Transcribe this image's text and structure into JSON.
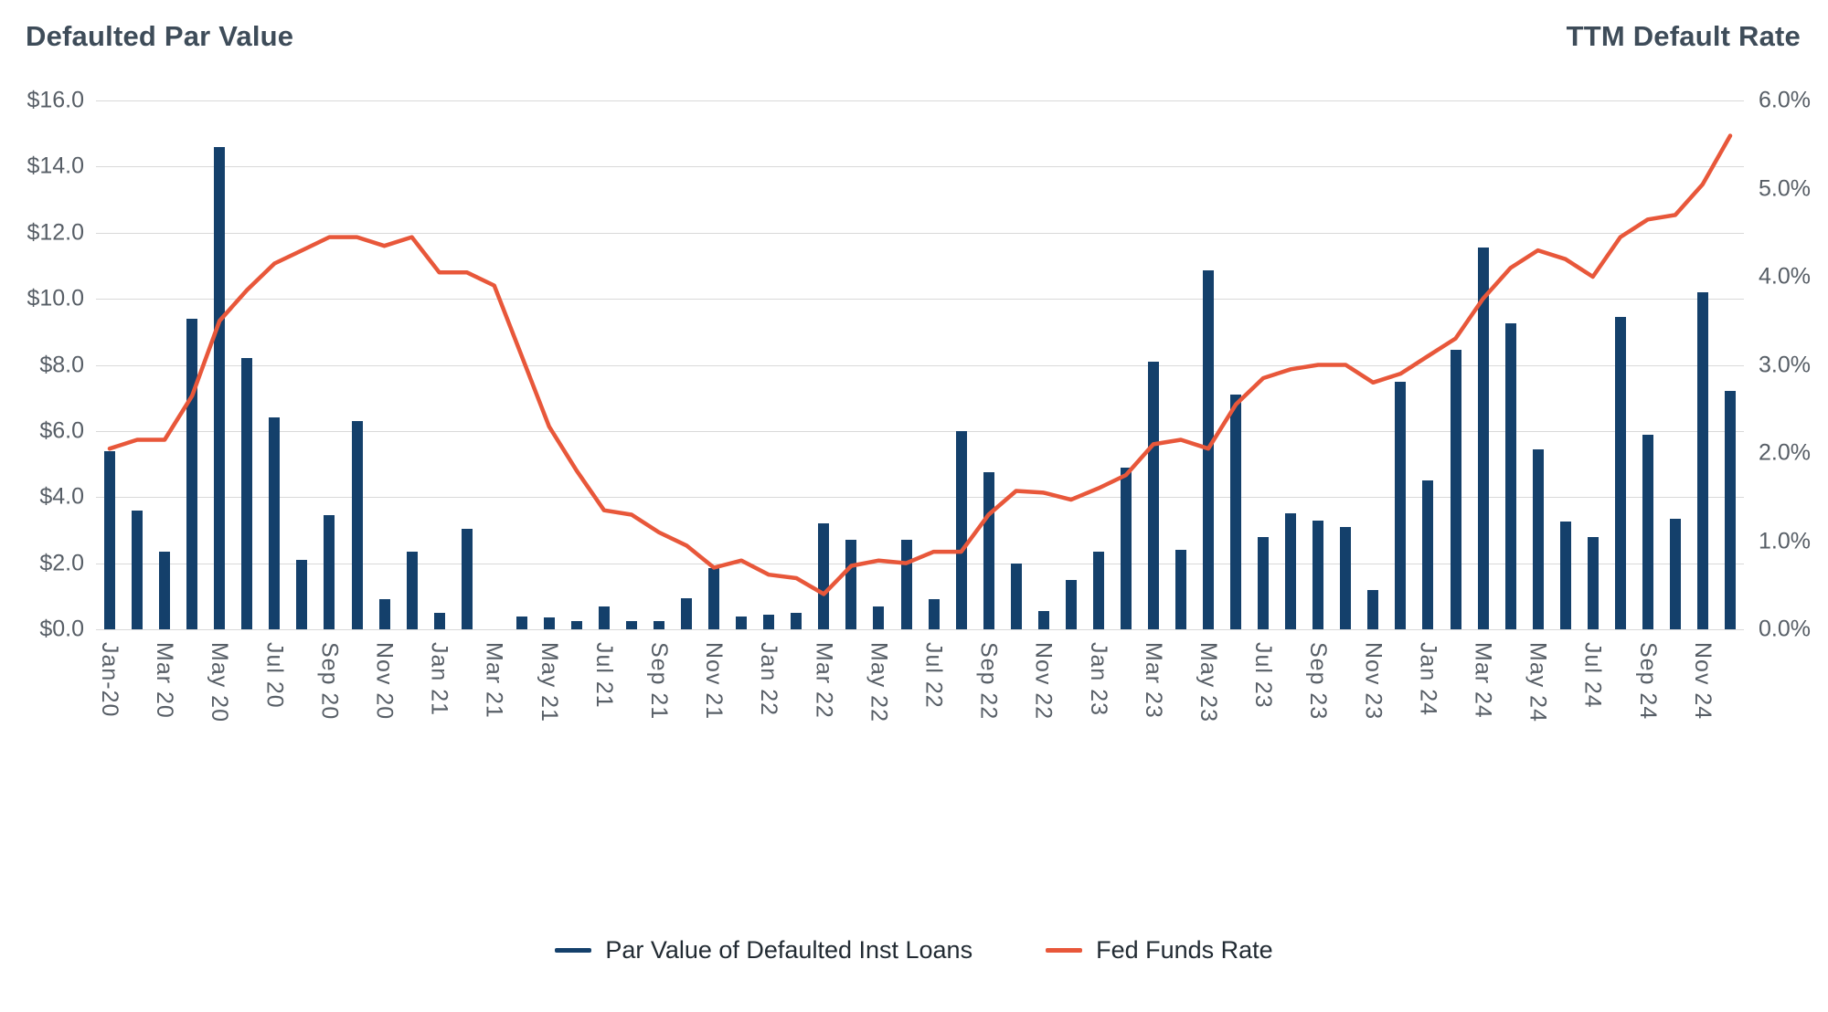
{
  "header": {
    "left_title": "Defaulted Par Value",
    "right_title": "TTM Default Rate"
  },
  "legend": [
    {
      "label": "Par Value of Defaulted Inst Loans",
      "color": "#14406b",
      "marker": "dash-icon"
    },
    {
      "label": "Fed Funds Rate",
      "color": "#e8573a",
      "marker": "dash-icon"
    }
  ],
  "colors": {
    "bar": "#14406b",
    "line": "#e8573a",
    "grid": "#d9d9d9",
    "axis_text": "#575e66",
    "title_text": "#3e4c59"
  },
  "chart_data": {
    "type": "bar+line",
    "title_left": "Defaulted Par Value",
    "title_right": "TTM Default Rate",
    "x": [
      "Jan 20",
      "Feb 20",
      "Mar 20",
      "Apr 20",
      "May 20",
      "Jun 20",
      "Jul 20",
      "Aug 20",
      "Sep 20",
      "Oct 20",
      "Nov 20",
      "Dec 20",
      "Jan 21",
      "Feb 21",
      "Mar 21",
      "Apr 21",
      "May 21",
      "Jun 21",
      "Jul 21",
      "Aug 21",
      "Sep 21",
      "Oct 21",
      "Nov 21",
      "Dec 21",
      "Jan 22",
      "Feb 22",
      "Mar 22",
      "Apr 22",
      "May 22",
      "Jun 22",
      "Jul 22",
      "Aug 22",
      "Sep 22",
      "Oct 22",
      "Nov 22",
      "Dec 22",
      "Jan 23",
      "Feb 23",
      "Mar 23",
      "Apr 23",
      "May 23",
      "Jun 23",
      "Jul 23",
      "Aug 23",
      "Sep 23",
      "Oct 23",
      "Nov 23",
      "Dec 23",
      "Jan 24",
      "Feb 24",
      "Mar 24",
      "Apr 24",
      "May 24",
      "Jun 24",
      "Jul 24",
      "Aug 24",
      "Sep 24",
      "Oct 24",
      "Nov 24",
      "Dec 24"
    ],
    "x_tick_step": 2,
    "x_tick_labels": [
      "Jan-20",
      "Mar 20",
      "May 20",
      "Jul 20",
      "Sep 20",
      "Nov 20",
      "Jan 21",
      "Mar 21",
      "May 21",
      "Jul 21",
      "Sep 21",
      "Nov 21",
      "Jan 22",
      "Mar 22",
      "May 22",
      "Jul 22",
      "Sep 22",
      "Nov 22",
      "Jan 23",
      "Mar 23",
      "May 23",
      "Jul 23",
      "Sep 23",
      "Nov 23",
      "Jan 24",
      "Mar 24",
      "May 24",
      "Jul 24",
      "Sep 24",
      "Nov 24"
    ],
    "series": [
      {
        "name": "Par Value of Defaulted Inst Loans",
        "type": "bar",
        "axis": "left",
        "values": [
          5.4,
          3.6,
          2.35,
          9.4,
          14.6,
          8.2,
          6.4,
          2.1,
          3.45,
          6.3,
          0.9,
          2.35,
          0.5,
          3.05,
          0.0,
          0.4,
          0.35,
          0.25,
          0.7,
          0.25,
          0.25,
          0.95,
          1.85,
          0.4,
          0.45,
          0.5,
          3.2,
          2.7,
          0.7,
          2.7,
          0.9,
          6.0,
          4.75,
          2.0,
          0.55,
          1.5,
          2.35,
          4.9,
          8.1,
          2.4,
          10.85,
          7.1,
          2.8,
          3.5,
          3.3,
          3.1,
          1.2,
          7.5,
          4.5,
          8.45,
          11.55,
          9.25,
          5.45,
          3.25,
          2.8,
          9.45,
          5.9,
          3.35,
          10.2,
          7.2
        ]
      },
      {
        "name": "Fed Funds Rate",
        "type": "line",
        "axis": "right",
        "values": [
          2.05,
          2.15,
          2.15,
          2.65,
          3.5,
          3.85,
          4.15,
          4.3,
          4.45,
          4.45,
          4.35,
          4.45,
          4.05,
          4.05,
          3.9,
          3.1,
          2.3,
          1.8,
          1.35,
          1.3,
          1.1,
          0.95,
          0.7,
          0.78,
          0.62,
          0.58,
          0.4,
          0.72,
          0.78,
          0.75,
          0.88,
          0.88,
          1.3,
          1.57,
          1.55,
          1.47,
          1.6,
          1.75,
          2.1,
          2.15,
          2.05,
          2.55,
          2.85,
          2.95,
          3.0,
          3.0,
          2.8,
          2.9,
          3.1,
          3.3,
          3.75,
          4.1,
          4.3,
          4.2,
          4.0,
          4.45,
          4.65,
          4.7,
          5.05,
          5.6
        ]
      }
    ],
    "left_axis": {
      "title": "Defaulted Par Value",
      "min": 0,
      "max": 16,
      "tick_values": [
        16,
        14,
        12,
        10,
        8,
        6,
        4,
        2,
        0
      ],
      "ticks": [
        "$16.0",
        "$14.0",
        "$12.0",
        "$10.0",
        "$8.0",
        "$6.0",
        "$4.0",
        "$2.0",
        "$0.0"
      ]
    },
    "right_axis": {
      "title": "TTM Default Rate",
      "min": 0,
      "max": 6,
      "tick_values": [
        6,
        5,
        4,
        3,
        2,
        1,
        0
      ],
      "ticks": [
        "6.0%",
        "5.0%",
        "4.0%",
        "3.0%",
        "2.0%",
        "1.0%",
        "0.0%"
      ]
    },
    "grid": "horizontal",
    "legend_position": "bottom-center"
  }
}
